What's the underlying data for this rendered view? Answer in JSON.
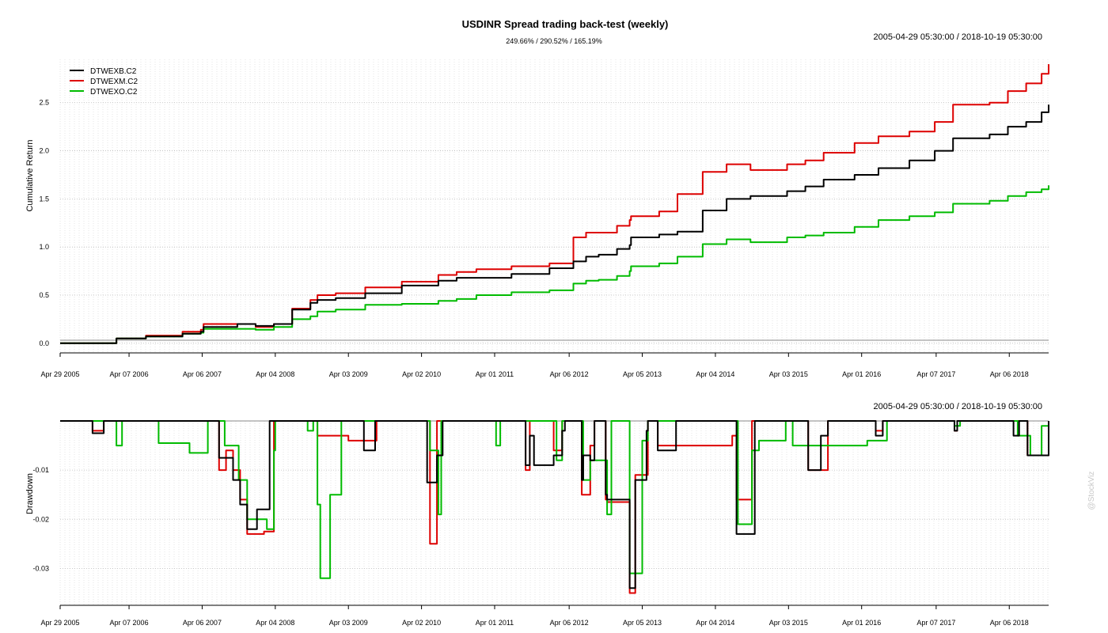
{
  "header": {
    "title": "USDINR Spread trading back-test (weekly)",
    "subtitle": "249.66% / 290.52% / 165.19%",
    "date_range_top": "2005-04-29 05:30:00 / 2018-10-19 05:30:00",
    "date_range_bottom": "2005-04-29 05:30:00 / 2018-10-19 05:30:00"
  },
  "watermark": "@StockViz",
  "legend": [
    "DTWEXB.C2",
    "DTWEXM.C2",
    "DTWEXO.C2"
  ],
  "colors": {
    "DTWEXB.C2": "#000000",
    "DTWEXM.C2": "#dd0000",
    "DTWEXO.C2": "#00bb00"
  },
  "chart_data": [
    {
      "type": "line",
      "title": "USDINR Spread trading back-test (weekly)",
      "ylabel": "Cumulative Return",
      "xlim": [
        "2005-04-29",
        "2018-10-19"
      ],
      "ylim": [
        -0.1,
        2.95
      ],
      "yticks": [
        "0.0",
        "0.5",
        "1.0",
        "1.5",
        "2.0",
        "2.5"
      ],
      "xtick_labels": [
        "Apr 29 2005",
        "Apr 07 2006",
        "Apr 06 2007",
        "Apr 04 2008",
        "Apr 03 2009",
        "Apr 02 2010",
        "Apr 01 2011",
        "Apr 06 2012",
        "Apr 05 2013",
        "Apr 04 2014",
        "Apr 03 2015",
        "Apr 01 2016",
        "Apr 07 2017",
        "Apr 06 2018"
      ],
      "grid": true,
      "legend_position": "top-left",
      "series": [
        {
          "name": "DTWEXB.C2",
          "x": [
            "2005-04-29",
            "2005-09-30",
            "2006-02-03",
            "2006-06-30",
            "2006-12-29",
            "2007-03-30",
            "2007-04-13",
            "2007-09-28",
            "2007-12-28",
            "2008-03-28",
            "2008-06-27",
            "2008-09-26",
            "2008-10-31",
            "2009-01-30",
            "2009-06-26",
            "2009-12-25",
            "2010-06-25",
            "2010-09-24",
            "2010-12-31",
            "2011-06-24",
            "2011-12-30",
            "2012-04-27",
            "2012-06-29",
            "2012-08-31",
            "2012-11-30",
            "2013-02-01",
            "2013-02-08",
            "2013-06-28",
            "2013-09-27",
            "2014-01-31",
            "2014-05-30",
            "2014-09-26",
            "2015-03-27",
            "2015-06-26",
            "2015-09-25",
            "2016-02-26",
            "2016-06-24",
            "2016-11-25",
            "2017-03-31",
            "2017-06-30",
            "2017-12-29",
            "2018-03-30",
            "2018-06-29",
            "2018-09-14",
            "2018-10-19"
          ],
          "values": [
            0.0,
            0.0,
            0.05,
            0.07,
            0.1,
            0.12,
            0.17,
            0.2,
            0.18,
            0.2,
            0.35,
            0.42,
            0.45,
            0.47,
            0.52,
            0.6,
            0.65,
            0.68,
            0.68,
            0.72,
            0.78,
            0.85,
            0.9,
            0.92,
            0.98,
            1.02,
            1.1,
            1.13,
            1.16,
            1.38,
            1.5,
            1.53,
            1.58,
            1.63,
            1.7,
            1.75,
            1.82,
            1.9,
            2.0,
            2.13,
            2.17,
            2.25,
            2.3,
            2.4,
            2.48
          ]
        },
        {
          "name": "DTWEXM.C2",
          "x": [
            "2005-04-29",
            "2005-09-30",
            "2006-02-03",
            "2006-06-30",
            "2006-12-29",
            "2007-03-30",
            "2007-04-13",
            "2007-09-28",
            "2007-12-28",
            "2008-03-28",
            "2008-06-27",
            "2008-09-26",
            "2008-10-31",
            "2009-01-30",
            "2009-06-26",
            "2009-12-25",
            "2010-06-25",
            "2010-09-24",
            "2010-12-31",
            "2011-06-24",
            "2011-12-30",
            "2012-04-27",
            "2012-06-29",
            "2012-08-31",
            "2012-11-30",
            "2013-02-01",
            "2013-02-08",
            "2013-06-28",
            "2013-09-27",
            "2014-01-31",
            "2014-05-30",
            "2014-09-26",
            "2015-03-27",
            "2015-06-26",
            "2015-09-25",
            "2016-02-26",
            "2016-06-24",
            "2016-11-25",
            "2017-03-31",
            "2017-06-30",
            "2017-12-29",
            "2018-03-30",
            "2018-06-29",
            "2018-09-14",
            "2018-10-19"
          ],
          "values": [
            0.0,
            0.0,
            0.05,
            0.08,
            0.12,
            0.14,
            0.2,
            0.2,
            0.17,
            0.2,
            0.36,
            0.45,
            0.5,
            0.52,
            0.58,
            0.64,
            0.71,
            0.74,
            0.77,
            0.8,
            0.83,
            1.1,
            1.15,
            1.15,
            1.22,
            1.28,
            1.32,
            1.37,
            1.55,
            1.78,
            1.86,
            1.8,
            1.86,
            1.9,
            1.98,
            2.08,
            2.15,
            2.2,
            2.3,
            2.48,
            2.5,
            2.62,
            2.7,
            2.8,
            2.9
          ]
        },
        {
          "name": "DTWEXO.C2",
          "x": [
            "2005-04-29",
            "2005-09-30",
            "2006-02-03",
            "2006-06-30",
            "2006-12-29",
            "2007-03-30",
            "2007-04-13",
            "2007-09-28",
            "2007-12-28",
            "2008-03-28",
            "2008-06-27",
            "2008-09-26",
            "2008-10-31",
            "2009-01-30",
            "2009-06-26",
            "2009-12-25",
            "2010-06-25",
            "2010-09-24",
            "2010-12-31",
            "2011-06-24",
            "2011-12-30",
            "2012-04-27",
            "2012-06-29",
            "2012-08-31",
            "2012-11-30",
            "2013-02-01",
            "2013-02-08",
            "2013-06-28",
            "2013-09-27",
            "2014-01-31",
            "2014-05-30",
            "2014-09-26",
            "2015-03-27",
            "2015-06-26",
            "2015-09-25",
            "2016-02-26",
            "2016-06-24",
            "2016-11-25",
            "2017-03-31",
            "2017-06-30",
            "2017-12-29",
            "2018-03-30",
            "2018-06-29",
            "2018-09-14",
            "2018-10-19"
          ],
          "values": [
            0.0,
            0.0,
            0.05,
            0.07,
            0.1,
            0.11,
            0.15,
            0.15,
            0.14,
            0.17,
            0.25,
            0.28,
            0.33,
            0.35,
            0.4,
            0.41,
            0.44,
            0.46,
            0.5,
            0.53,
            0.55,
            0.62,
            0.65,
            0.66,
            0.7,
            0.75,
            0.8,
            0.83,
            0.9,
            1.03,
            1.08,
            1.05,
            1.1,
            1.12,
            1.15,
            1.21,
            1.28,
            1.32,
            1.36,
            1.45,
            1.48,
            1.53,
            1.57,
            1.6,
            1.64
          ]
        }
      ]
    },
    {
      "type": "line",
      "ylabel": "Drawdown",
      "xlim": [
        "2005-04-29",
        "2018-10-19"
      ],
      "ylim": [
        -0.0375,
        0.0
      ],
      "yticks": [
        "-0.01",
        "-0.02",
        "-0.03"
      ],
      "xtick_labels": [
        "Apr 29 2005",
        "Apr 07 2006",
        "Apr 06 2007",
        "Apr 04 2008",
        "Apr 03 2009",
        "Apr 02 2010",
        "Apr 01 2011",
        "Apr 06 2012",
        "Apr 05 2013",
        "Apr 04 2014",
        "Apr 03 2015",
        "Apr 01 2016",
        "Apr 07 2017",
        "Apr 06 2018"
      ],
      "grid": true,
      "series": [
        {
          "name": "DTWEXB.C2",
          "x": [
            "2005-04-29",
            "2005-10-07",
            "2005-11-04",
            "2005-12-02",
            "2006-06-02",
            "2007-06-29",
            "2007-08-03",
            "2007-09-07",
            "2007-10-12",
            "2007-11-16",
            "2008-01-04",
            "2008-02-08",
            "2008-03-07",
            "2008-03-28",
            "2008-04-04",
            "2008-10-31",
            "2009-06-19",
            "2009-07-31",
            "2009-08-14",
            "2010-04-30",
            "2010-05-14",
            "2010-06-18",
            "2010-07-16",
            "2011-09-02",
            "2011-09-23",
            "2011-10-14",
            "2012-01-20",
            "2012-03-02",
            "2012-03-16",
            "2012-06-08",
            "2012-06-15",
            "2012-07-20",
            "2012-08-10",
            "2012-10-05",
            "2012-10-12",
            "2013-02-01",
            "2013-03-01",
            "2013-04-05",
            "2013-04-26",
            "2013-05-03",
            "2013-06-07",
            "2013-06-21",
            "2013-09-20",
            "2014-07-18",
            "2014-10-03",
            "2014-10-17",
            "2015-07-10",
            "2015-09-11",
            "2015-10-16",
            "2016-06-10",
            "2016-07-15",
            "2017-07-07",
            "2017-07-21",
            "2018-04-27",
            "2018-05-25",
            "2018-07-06",
            "2018-08-24",
            "2018-10-19"
          ],
          "values": [
            0.0,
            -0.0025,
            -0.0025,
            0.0,
            0.0,
            -0.0075,
            -0.0075,
            -0.012,
            -0.017,
            -0.022,
            -0.018,
            -0.018,
            0.0,
            0.0,
            0.0,
            0.0,
            -0.006,
            -0.006,
            0.0,
            -0.0125,
            -0.0125,
            -0.007,
            0.0,
            -0.009,
            -0.003,
            -0.009,
            -0.007,
            -0.002,
            0.0,
            -0.012,
            -0.007,
            -0.008,
            0.0,
            -0.015,
            -0.016,
            -0.034,
            -0.012,
            -0.012,
            -0.002,
            0.0,
            0.0,
            -0.006,
            0.0,
            -0.023,
            -0.023,
            0.0,
            -0.01,
            -0.003,
            0.0,
            -0.003,
            0.0,
            -0.002,
            0.0,
            -0.003,
            0.0,
            -0.007,
            -0.007,
            0.0
          ]
        },
        {
          "name": "DTWEXM.C2",
          "x": [
            "2005-04-29",
            "2005-10-07",
            "2005-12-02",
            "2006-06-02",
            "2007-06-29",
            "2007-08-03",
            "2007-09-07",
            "2007-10-12",
            "2007-11-16",
            "2008-01-04",
            "2008-02-08",
            "2008-03-07",
            "2008-03-28",
            "2008-10-31",
            "2009-04-03",
            "2009-07-03",
            "2009-08-21",
            "2010-03-19",
            "2010-05-14",
            "2010-05-21",
            "2010-06-18",
            "2011-09-02",
            "2011-09-23",
            "2012-01-20",
            "2012-03-02",
            "2012-06-08",
            "2012-07-20",
            "2012-08-10",
            "2012-10-05",
            "2012-10-12",
            "2013-02-01",
            "2013-03-01",
            "2013-05-03",
            "2013-06-21",
            "2014-06-27",
            "2014-07-18",
            "2014-10-03",
            "2015-07-10",
            "2015-10-16",
            "2016-06-10",
            "2016-07-15",
            "2017-07-07",
            "2017-07-21",
            "2018-05-25",
            "2018-07-06",
            "2018-08-24",
            "2018-10-19"
          ],
          "values": [
            0.0,
            -0.002,
            0.0,
            0.0,
            -0.01,
            -0.006,
            -0.01,
            -0.016,
            -0.023,
            -0.023,
            -0.0225,
            -0.0225,
            0.0,
            -0.003,
            -0.004,
            -0.004,
            0.0,
            0.0,
            -0.025,
            -0.025,
            0.0,
            -0.01,
            0.0,
            -0.006,
            0.0,
            -0.015,
            -0.005,
            0.0,
            -0.016,
            -0.0165,
            -0.035,
            -0.011,
            0.0,
            -0.005,
            -0.003,
            -0.016,
            0.0,
            -0.01,
            0.0,
            -0.002,
            0.0,
            -0.002,
            0.0,
            0.0,
            -0.007,
            -0.007,
            0.0
          ]
        },
        {
          "name": "DTWEXO.C2",
          "x": [
            "2005-04-29",
            "2006-02-03",
            "2006-03-03",
            "2006-07-28",
            "2006-09-01",
            "2006-11-03",
            "2007-02-02",
            "2007-03-02",
            "2007-05-04",
            "2007-07-27",
            "2007-08-31",
            "2007-10-05",
            "2007-11-16",
            "2008-01-04",
            "2008-02-22",
            "2008-03-28",
            "2008-04-04",
            "2008-09-12",
            "2008-10-10",
            "2008-10-31",
            "2008-11-14",
            "2009-01-02",
            "2009-02-27",
            "2010-05-14",
            "2010-06-25",
            "2010-07-09",
            "2011-04-08",
            "2011-04-29",
            "2012-02-03",
            "2012-03-02",
            "2012-06-15",
            "2012-07-20",
            "2012-10-12",
            "2012-11-02",
            "2013-02-01",
            "2013-04-05",
            "2013-05-03",
            "2014-07-25",
            "2014-10-03",
            "2014-11-07",
            "2015-03-20",
            "2015-04-24",
            "2016-03-04",
            "2016-04-29",
            "2016-08-05",
            "2017-07-07",
            "2017-08-04",
            "2018-05-18",
            "2018-07-20",
            "2018-09-14",
            "2018-10-19"
          ],
          "values": [
            0.0,
            -0.005,
            0.0,
            0.0,
            -0.0045,
            -0.0045,
            -0.0065,
            -0.0065,
            0.0,
            -0.005,
            -0.005,
            -0.012,
            -0.02,
            -0.02,
            -0.022,
            -0.006,
            0.0,
            -0.002,
            0.0,
            -0.017,
            -0.032,
            -0.015,
            0.0,
            -0.006,
            -0.019,
            0.0,
            -0.005,
            0.0,
            -0.008,
            0.0,
            -0.012,
            -0.008,
            -0.019,
            0.0,
            -0.031,
            -0.004,
            0.0,
            -0.021,
            -0.006,
            -0.004,
            0.0,
            -0.005,
            -0.005,
            -0.004,
            0.0,
            -0.001,
            0.0,
            -0.003,
            -0.007,
            -0.001,
            0.0
          ]
        }
      ]
    }
  ]
}
